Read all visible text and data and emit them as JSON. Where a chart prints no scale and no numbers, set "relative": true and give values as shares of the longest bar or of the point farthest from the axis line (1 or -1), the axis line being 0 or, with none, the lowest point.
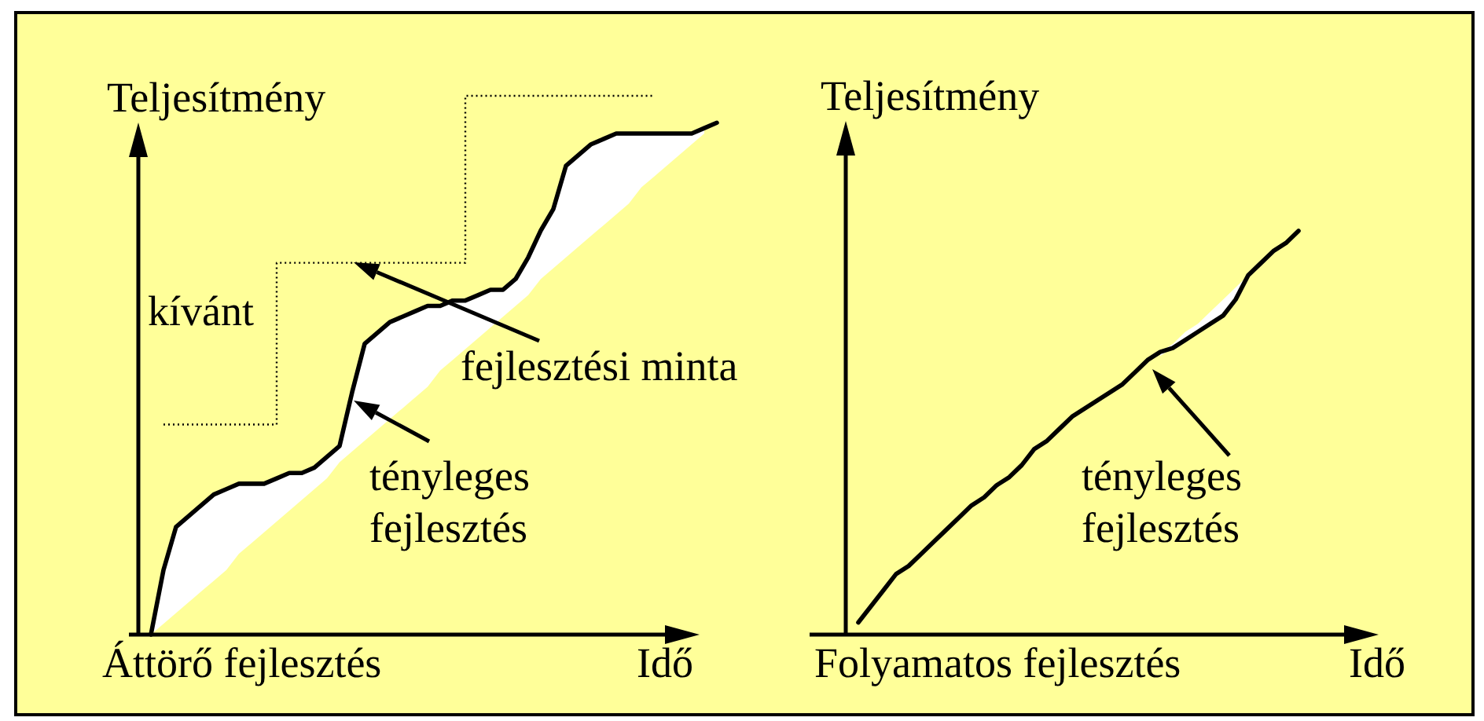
{
  "chart_data": [
    {
      "type": "line",
      "title": "Áttörő fejlesztés",
      "xlabel": "Idő",
      "ylabel": "Teljesítmény",
      "relative": true,
      "categories": [
        null,
        null,
        null,
        null,
        null,
        null,
        null,
        null,
        null,
        null,
        null,
        null,
        null,
        null,
        null,
        null,
        null,
        null,
        null,
        null,
        null,
        null,
        null,
        null,
        null,
        null,
        null,
        null,
        null,
        null,
        null,
        null,
        null,
        null,
        null,
        null,
        null,
        null,
        null,
        null,
        null,
        null,
        null,
        null,
        null,
        null,
        null
      ],
      "series": [
        {
          "type": "step",
          "color": "#000000",
          "line_style": "dotted",
          "values": [
            null,
            null,
            0.39,
            0.39,
            0.39,
            0.39,
            0.39,
            0.39,
            0.39,
            0.39,
            0.39,
            0.39,
            0.69,
            0.69,
            0.69,
            0.69,
            0.69,
            0.69,
            0.69,
            0.69,
            0.69,
            0.69,
            0.69,
            0.69,
            0.69,
            0.69,
            0.69,
            1,
            1,
            1,
            1,
            1,
            1,
            1,
            1,
            1,
            1,
            1,
            1,
            1,
            1,
            1,
            null,
            null,
            null,
            null,
            null
          ]
        },
        {
          "color": "#000000",
          "values": [
            null,
            0,
            0.12,
            0.2,
            0.22,
            0.24,
            0.26,
            0.27,
            0.28,
            0.28,
            0.28,
            0.29,
            0.3,
            0.3,
            0.31,
            0.33,
            0.35,
            0.45,
            0.54,
            0.56,
            0.58,
            0.59,
            0.6,
            0.61,
            0.61,
            0.62,
            0.62,
            0.63,
            0.64,
            0.64,
            0.66,
            0.7,
            0.75,
            0.79,
            0.87,
            0.89,
            0.91,
            0.92,
            0.93,
            0.93,
            0.93,
            0.93,
            0.93,
            0.93,
            0.93,
            0.94,
            0.95
          ],
          "lower": [
            null,
            0,
            0.02,
            0.04,
            0.06,
            0.08,
            0.1,
            0.12,
            0.15,
            0.17,
            0.19,
            0.21,
            0.23,
            0.25,
            0.27,
            0.29,
            0.32,
            0.34,
            0.36,
            0.38,
            0.4,
            0.42,
            0.44,
            0.46,
            0.49,
            0.51,
            0.53,
            0.55,
            0.57,
            0.59,
            0.61,
            0.63,
            0.66,
            0.68,
            0.7,
            0.72,
            0.74,
            0.76,
            0.78,
            0.8,
            0.83,
            0.85,
            0.87,
            0.89,
            0.91,
            0.93,
            null
          ],
          "upper": [
            null,
            0,
            0.12,
            0.2,
            0.22,
            0.24,
            0.26,
            0.27,
            0.28,
            0.28,
            0.28,
            0.29,
            0.3,
            0.3,
            0.31,
            0.33,
            0.35,
            0.45,
            0.54,
            0.56,
            0.58,
            0.59,
            0.6,
            0.61,
            0.61,
            0.62,
            0.62,
            0.63,
            0.64,
            0.64,
            0.66,
            0.7,
            0.75,
            0.79,
            0.87,
            0.89,
            0.91,
            0.92,
            0.93,
            0.93,
            0.93,
            0.93,
            0.93,
            0.93,
            0.93,
            0.94,
            null
          ]
        }
      ],
      "annotations": [
        "kívánt",
        "fejlesztési minta",
        "tényleges fejlesztés"
      ]
    },
    {
      "type": "line",
      "title": "Folyamatos fejlesztés",
      "xlabel": "Idő",
      "ylabel": "Teljesítmény",
      "relative": true,
      "categories": [
        null,
        null,
        null,
        null,
        null,
        null,
        null,
        null,
        null,
        null,
        null,
        null,
        null,
        null,
        null,
        null,
        null,
        null,
        null,
        null,
        null,
        null,
        null,
        null,
        null,
        null,
        null,
        null,
        null,
        null,
        null,
        null,
        null,
        null,
        null,
        null,
        null,
        null,
        null,
        null,
        null,
        null,
        null
      ],
      "series": [
        {
          "color": "#000000",
          "values": [
            null,
            0.03,
            0.07,
            0.11,
            0.15,
            0.17,
            0.2,
            0.23,
            0.26,
            0.29,
            0.32,
            0.34,
            0.37,
            0.39,
            0.42,
            0.46,
            0.48,
            0.51,
            0.54,
            0.56,
            0.58,
            0.6,
            0.62,
            0.65,
            0.68,
            0.7,
            0.71,
            0.73,
            0.75,
            0.77,
            0.79,
            0.83,
            0.89,
            0.92,
            0.95,
            0.97,
            1,
            null,
            null,
            null,
            null,
            null,
            null
          ],
          "lower": [
            null,
            null,
            null,
            null,
            null,
            null,
            null,
            null,
            null,
            null,
            null,
            null,
            null,
            null,
            null,
            null,
            null,
            null,
            null,
            null,
            null,
            null,
            null,
            null,
            null,
            0.69,
            0.71,
            0.73,
            0.75,
            0.77,
            0.79,
            0.83,
            0.89,
            0.92,
            null,
            null,
            null,
            null,
            null,
            null,
            null,
            null,
            null
          ],
          "upper": [
            null,
            null,
            null,
            null,
            null,
            null,
            null,
            null,
            null,
            null,
            null,
            null,
            null,
            null,
            null,
            null,
            null,
            null,
            null,
            null,
            null,
            null,
            null,
            null,
            null,
            0.7,
            0.72,
            0.75,
            0.77,
            0.8,
            0.83,
            0.86,
            0.89,
            0.92,
            null,
            null,
            null,
            null,
            null,
            null,
            null,
            null,
            null
          ]
        }
      ],
      "annotations": [
        "tényleges fejlesztés"
      ]
    }
  ]
}
